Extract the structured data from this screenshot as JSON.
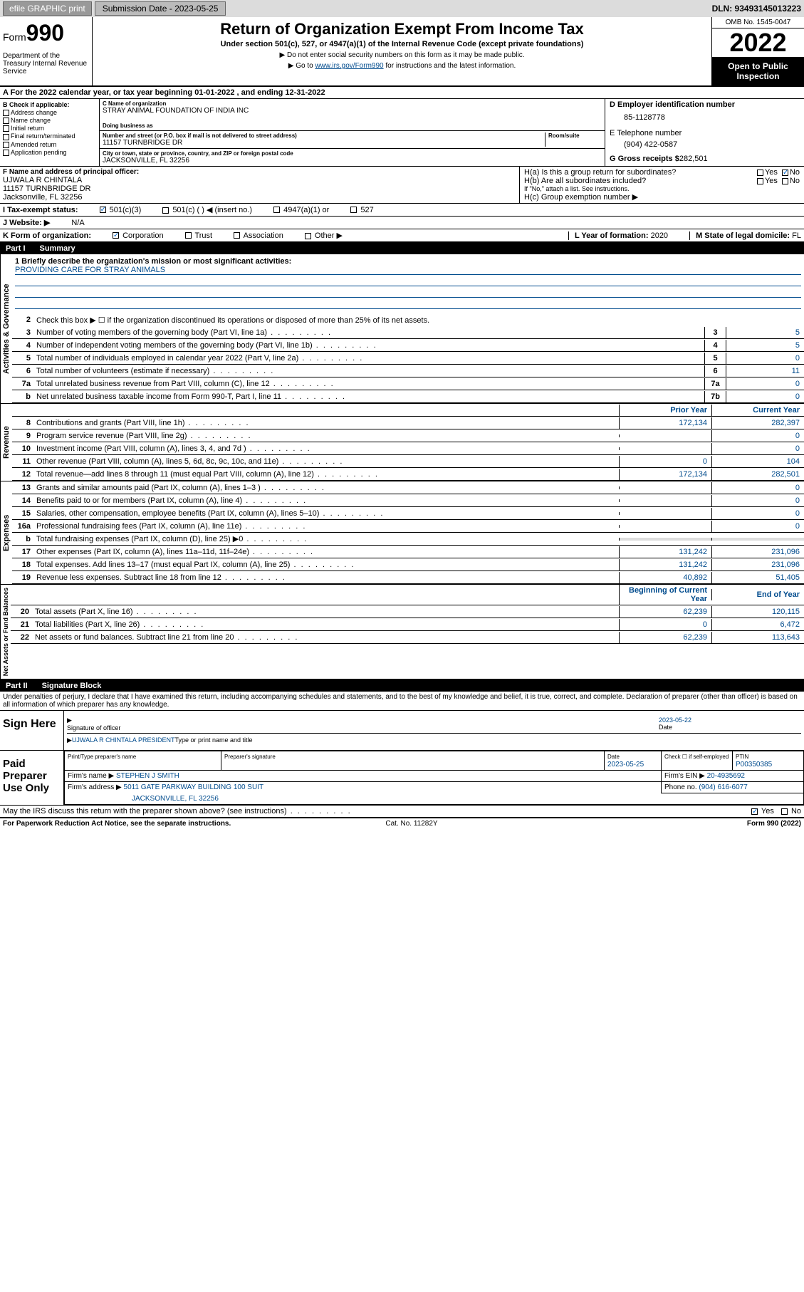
{
  "topbar": {
    "efile": "efile GRAPHIC print",
    "sub_label": "Submission Date - 2023-05-25",
    "dln": "DLN: 93493145013223"
  },
  "header": {
    "form_word": "Form",
    "form_num": "990",
    "dept": "Department of the Treasury Internal Revenue Service",
    "title": "Return of Organization Exempt From Income Tax",
    "sub": "Under section 501(c), 527, or 4947(a)(1) of the Internal Revenue Code (except private foundations)",
    "note1": "▶ Do not enter social security numbers on this form as it may be made public.",
    "note2_pre": "▶ Go to ",
    "note2_link": "www.irs.gov/Form990",
    "note2_post": " for instructions and the latest information.",
    "omb": "OMB No. 1545-0047",
    "year": "2022",
    "inspect": "Open to Public Inspection"
  },
  "period": {
    "text": "A For the 2022 calendar year, or tax year beginning 01-01-2022    , and ending 12-31-2022"
  },
  "sectionB": {
    "title": "B Check if applicable:",
    "items": [
      "Address change",
      "Name change",
      "Initial return",
      "Final return/terminated",
      "Amended return",
      "Application pending"
    ]
  },
  "org": {
    "name_lbl": "C Name of organization",
    "name": "STRAY ANIMAL FOUNDATION OF INDIA INC",
    "dba_lbl": "Doing business as",
    "addr_lbl": "Number and street (or P.O. box if mail is not delivered to street address)",
    "room_lbl": "Room/suite",
    "addr": "11157 TURNBRIDGE DR",
    "city_lbl": "City or town, state or province, country, and ZIP or foreign postal code",
    "city": "JACKSONVILLE, FL  32256"
  },
  "right": {
    "ein_lbl": "D Employer identification number",
    "ein": "85-1128778",
    "phone_lbl": "E Telephone number",
    "phone": "(904) 422-0587",
    "gross_lbl": "G Gross receipts $",
    "gross": "282,501"
  },
  "officer": {
    "lbl": "F  Name and address of principal officer:",
    "name": "UJWALA R CHINTALA",
    "addr1": "11157 TURNBRIDGE DR",
    "addr2": "Jacksonville, FL  32256"
  },
  "groupH": {
    "ha": "H(a)  Is this a group return for subordinates?",
    "hb": "H(b)  Are all subordinates included?",
    "hb_note": "If \"No,\" attach a list. See instructions.",
    "hc": "H(c)  Group exemption number ▶",
    "yes": "Yes",
    "no": "No"
  },
  "tax_status": {
    "lbl": "I    Tax-exempt status:",
    "o1": "501(c)(3)",
    "o2": "501(c) (  ) ◀ (insert no.)",
    "o3": "4947(a)(1) or",
    "o4": "527"
  },
  "website": {
    "lbl": "J   Website: ▶",
    "val": "N/A"
  },
  "formorg": {
    "lbl": "K Form of organization:",
    "opts": [
      "Corporation",
      "Trust",
      "Association",
      "Other ▶"
    ],
    "year_lbl": "L Year of formation:",
    "year": "2020",
    "state_lbl": "M State of legal domicile:",
    "state": "FL"
  },
  "part1": {
    "label": "Part I",
    "title": "Summary"
  },
  "mission": {
    "q": "1    Briefly describe the organization's mission or most significant activities:",
    "text": "PROVIDING CARE FOR STRAY ANIMALS"
  },
  "gov_lines": {
    "l2": "Check this box ▶ ☐  if the organization discontinued its operations or disposed of more than 25% of its net assets.",
    "rows": [
      {
        "n": "3",
        "d": "Number of voting members of the governing body (Part VI, line 1a)",
        "b": "3",
        "v": "5"
      },
      {
        "n": "4",
        "d": "Number of independent voting members of the governing body (Part VI, line 1b)",
        "b": "4",
        "v": "5"
      },
      {
        "n": "5",
        "d": "Total number of individuals employed in calendar year 2022 (Part V, line 2a)",
        "b": "5",
        "v": "0"
      },
      {
        "n": "6",
        "d": "Total number of volunteers (estimate if necessary)",
        "b": "6",
        "v": "11"
      },
      {
        "n": "7a",
        "d": "Total unrelated business revenue from Part VIII, column (C), line 12",
        "b": "7a",
        "v": "0"
      },
      {
        "n": "b",
        "d": "Net unrelated business taxable income from Form 990-T, Part I, line 11",
        "b": "7b",
        "v": "0"
      }
    ]
  },
  "colheads": {
    "prior": "Prior Year",
    "current": "Current Year",
    "begin": "Beginning of Current Year",
    "end": "End of Year"
  },
  "revenue": [
    {
      "n": "8",
      "d": "Contributions and grants (Part VIII, line 1h)",
      "p": "172,134",
      "c": "282,397"
    },
    {
      "n": "9",
      "d": "Program service revenue (Part VIII, line 2g)",
      "p": "",
      "c": "0"
    },
    {
      "n": "10",
      "d": "Investment income (Part VIII, column (A), lines 3, 4, and 7d )",
      "p": "",
      "c": "0"
    },
    {
      "n": "11",
      "d": "Other revenue (Part VIII, column (A), lines 5, 6d, 8c, 9c, 10c, and 11e)",
      "p": "0",
      "c": "104"
    },
    {
      "n": "12",
      "d": "Total revenue—add lines 8 through 11 (must equal Part VIII, column (A), line 12)",
      "p": "172,134",
      "c": "282,501"
    }
  ],
  "expenses": [
    {
      "n": "13",
      "d": "Grants and similar amounts paid (Part IX, column (A), lines 1–3 )",
      "p": "",
      "c": "0"
    },
    {
      "n": "14",
      "d": "Benefits paid to or for members (Part IX, column (A), line 4)",
      "p": "",
      "c": "0"
    },
    {
      "n": "15",
      "d": "Salaries, other compensation, employee benefits (Part IX, column (A), lines 5–10)",
      "p": "",
      "c": "0"
    },
    {
      "n": "16a",
      "d": "Professional fundraising fees (Part IX, column (A), line 11e)",
      "p": "",
      "c": "0"
    },
    {
      "n": "b",
      "d": "Total fundraising expenses (Part IX, column (D), line 25) ▶0",
      "p": "GRAY",
      "c": "GRAY"
    },
    {
      "n": "17",
      "d": "Other expenses (Part IX, column (A), lines 11a–11d, 11f–24e)",
      "p": "131,242",
      "c": "231,096"
    },
    {
      "n": "18",
      "d": "Total expenses. Add lines 13–17 (must equal Part IX, column (A), line 25)",
      "p": "131,242",
      "c": "231,096"
    },
    {
      "n": "19",
      "d": "Revenue less expenses. Subtract line 18 from line 12",
      "p": "40,892",
      "c": "51,405"
    }
  ],
  "netassets": [
    {
      "n": "20",
      "d": "Total assets (Part X, line 16)",
      "p": "62,239",
      "c": "120,115"
    },
    {
      "n": "21",
      "d": "Total liabilities (Part X, line 26)",
      "p": "0",
      "c": "6,472"
    },
    {
      "n": "22",
      "d": "Net assets or fund balances. Subtract line 21 from line 20",
      "p": "62,239",
      "c": "113,643"
    }
  ],
  "vert_labels": {
    "gov": "Activities & Governance",
    "rev": "Revenue",
    "exp": "Expenses",
    "net": "Net Assets or Fund Balances"
  },
  "part2": {
    "label": "Part II",
    "title": "Signature Block"
  },
  "penalty": "Under penalties of perjury, I declare that I have examined this return, including accompanying schedules and statements, and to the best of my knowledge and belief, it is true, correct, and complete. Declaration of preparer (other than officer) is based on all information of which preparer has any knowledge.",
  "sign": {
    "here": "Sign Here",
    "sig_lbl": "Signature of officer",
    "date_lbl": "Date",
    "date": "2023-05-22",
    "name": "UJWALA R CHINTALA  PRESIDENT",
    "name_lbl": "Type or print name and title"
  },
  "prep": {
    "title": "Paid Preparer Use Only",
    "h1": "Print/Type preparer's name",
    "h2": "Preparer's signature",
    "h3": "Date",
    "h4": "Check ☐ if self-employed",
    "h5": "PTIN",
    "date": "2023-05-25",
    "ptin": "P00350385",
    "firm_lbl": "Firm's name   ▶",
    "firm": "STEPHEN J SMITH",
    "ein_lbl": "Firm's EIN ▶",
    "ein": "20-4935692",
    "addr_lbl": "Firm's address ▶",
    "addr": "5011 GATE PARKWAY BUILDING 100 SUIT",
    "addr2": "JACKSONVILLE, FL 32256",
    "phone_lbl": "Phone no.",
    "phone": "(904) 616-6077"
  },
  "discuss": {
    "q": "May the IRS discuss this return with the preparer shown above? (see instructions)",
    "yes": "Yes",
    "no": "No"
  },
  "footer": {
    "l": "For Paperwork Reduction Act Notice, see the separate instructions.",
    "m": "Cat. No. 11282Y",
    "r": "Form 990 (2022)"
  }
}
